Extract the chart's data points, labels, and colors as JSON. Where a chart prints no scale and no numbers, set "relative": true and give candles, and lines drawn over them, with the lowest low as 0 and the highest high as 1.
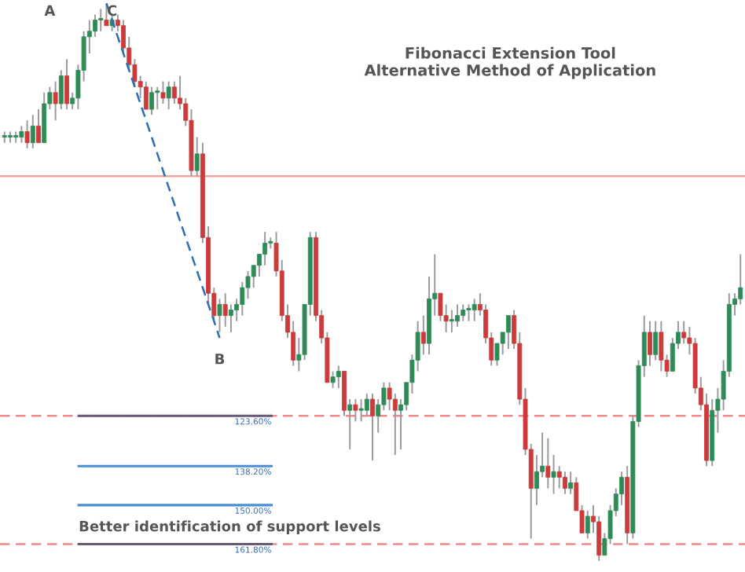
{
  "chart_data": {
    "type": "candlestick",
    "title": "Fibonacci Extension Tool",
    "subtitle": "Alternative Method of Application",
    "relative": true,
    "categories": [
      null,
      null,
      null,
      null,
      null,
      null,
      null,
      null,
      null,
      null,
      null,
      null,
      null,
      null,
      null,
      null,
      null,
      null,
      null,
      null,
      null,
      null,
      null,
      null,
      null,
      null,
      null,
      null,
      null,
      null,
      null,
      null,
      null,
      null,
      null,
      null,
      null,
      null,
      null,
      null,
      null,
      null,
      null,
      null,
      null,
      null,
      null,
      null,
      null,
      null,
      null,
      null,
      null,
      null,
      null,
      null,
      null,
      null,
      null,
      null,
      null,
      null,
      null,
      null,
      null,
      null,
      null,
      null,
      null,
      null,
      null,
      null,
      null,
      null,
      null,
      null,
      null,
      null,
      null,
      null,
      null,
      null,
      null,
      null,
      null,
      null,
      null,
      null,
      null,
      null,
      null,
      null,
      null,
      null,
      null,
      null,
      null,
      null,
      null,
      null,
      null,
      null,
      null,
      null,
      null,
      null,
      null,
      null,
      null,
      null,
      null,
      null,
      null,
      null,
      null,
      null,
      null,
      null,
      null,
      null,
      null,
      null,
      null,
      null,
      null,
      null,
      null,
      null,
      null,
      null,
      null
    ],
    "ohlc": [
      [
        0.76,
        0.77,
        0.75,
        0.76
      ],
      [
        0.76,
        0.77,
        0.75,
        0.76
      ],
      [
        0.76,
        0.77,
        0.75,
        0.76
      ],
      [
        0.76,
        0.78,
        0.75,
        0.77
      ],
      [
        0.77,
        0.79,
        0.74,
        0.75
      ],
      [
        0.75,
        0.8,
        0.74,
        0.78
      ],
      [
        0.78,
        0.81,
        0.75,
        0.75
      ],
      [
        0.75,
        0.84,
        0.75,
        0.82
      ],
      [
        0.82,
        0.85,
        0.81,
        0.84
      ],
      [
        0.84,
        0.86,
        0.79,
        0.82
      ],
      [
        0.82,
        0.88,
        0.81,
        0.87
      ],
      [
        0.87,
        0.9,
        0.81,
        0.82
      ],
      [
        0.82,
        0.84,
        0.81,
        0.83
      ],
      [
        0.83,
        0.89,
        0.81,
        0.88
      ],
      [
        0.88,
        0.95,
        0.86,
        0.94
      ],
      [
        0.94,
        0.97,
        0.91,
        0.95
      ],
      [
        0.95,
        0.98,
        0.94,
        0.97
      ],
      [
        0.97,
        0.99,
        0.95,
        0.97
      ],
      [
        0.97,
        1.0,
        0.96,
        0.96
      ],
      [
        0.96,
        0.98,
        0.95,
        0.97
      ],
      [
        0.97,
        0.98,
        0.95,
        0.96
      ],
      [
        0.96,
        0.97,
        0.91,
        0.92
      ],
      [
        0.92,
        0.94,
        0.88,
        0.89
      ],
      [
        0.89,
        0.9,
        0.85,
        0.86
      ],
      [
        0.86,
        0.87,
        0.83,
        0.85
      ],
      [
        0.85,
        0.86,
        0.81,
        0.81
      ],
      [
        0.81,
        0.85,
        0.8,
        0.84
      ],
      [
        0.84,
        0.85,
        0.81,
        0.84
      ],
      [
        0.84,
        0.86,
        0.82,
        0.83
      ],
      [
        0.83,
        0.86,
        0.81,
        0.85
      ],
      [
        0.85,
        0.86,
        0.82,
        0.83
      ],
      [
        0.83,
        0.87,
        0.81,
        0.82
      ],
      [
        0.82,
        0.83,
        0.78,
        0.79
      ],
      [
        0.79,
        0.81,
        0.69,
        0.7
      ],
      [
        0.7,
        0.76,
        0.69,
        0.73
      ],
      [
        0.73,
        0.75,
        0.57,
        0.58
      ],
      [
        0.58,
        0.6,
        0.46,
        0.48
      ],
      [
        0.48,
        0.49,
        0.43,
        0.44
      ],
      [
        0.44,
        0.47,
        0.41,
        0.46
      ],
      [
        0.46,
        0.48,
        0.42,
        0.44
      ],
      [
        0.44,
        0.46,
        0.41,
        0.45
      ],
      [
        0.45,
        0.47,
        0.43,
        0.46
      ],
      [
        0.46,
        0.5,
        0.44,
        0.49
      ],
      [
        0.49,
        0.52,
        0.47,
        0.51
      ],
      [
        0.51,
        0.53,
        0.49,
        0.53
      ],
      [
        0.53,
        0.55,
        0.51,
        0.55
      ],
      [
        0.55,
        0.59,
        0.53,
        0.57
      ],
      [
        0.57,
        0.58,
        0.56,
        0.57
      ],
      [
        0.57,
        0.59,
        0.51,
        0.52
      ],
      [
        0.52,
        0.54,
        0.43,
        0.44
      ],
      [
        0.44,
        0.46,
        0.4,
        0.41
      ],
      [
        0.41,
        0.43,
        0.35,
        0.36
      ],
      [
        0.36,
        0.4,
        0.34,
        0.37
      ],
      [
        0.37,
        0.46,
        0.36,
        0.46
      ],
      [
        0.46,
        0.59,
        0.44,
        0.58
      ],
      [
        0.58,
        0.59,
        0.43,
        0.44
      ],
      [
        0.44,
        0.45,
        0.39,
        0.4
      ],
      [
        0.4,
        0.41,
        0.32,
        0.32
      ],
      [
        0.32,
        0.34,
        0.31,
        0.33
      ],
      [
        0.33,
        0.35,
        0.31,
        0.34
      ],
      [
        0.34,
        0.34,
        0.26,
        0.27
      ],
      [
        0.27,
        0.29,
        0.2,
        0.28
      ],
      [
        0.28,
        0.29,
        0.25,
        0.27
      ],
      [
        0.27,
        0.29,
        0.25,
        0.27
      ],
      [
        0.27,
        0.3,
        0.26,
        0.29
      ],
      [
        0.29,
        0.3,
        0.18,
        0.26
      ],
      [
        0.26,
        0.29,
        0.23,
        0.28
      ],
      [
        0.28,
        0.32,
        0.27,
        0.31
      ],
      [
        0.31,
        0.32,
        0.27,
        0.29
      ],
      [
        0.29,
        0.3,
        0.19,
        0.27
      ],
      [
        0.27,
        0.29,
        0.2,
        0.28
      ],
      [
        0.28,
        0.32,
        0.27,
        0.32
      ],
      [
        0.32,
        0.37,
        0.3,
        0.36
      ],
      [
        0.36,
        0.43,
        0.34,
        0.41
      ],
      [
        0.41,
        0.44,
        0.37,
        0.39
      ],
      [
        0.39,
        0.51,
        0.37,
        0.47
      ],
      [
        0.47,
        0.55,
        0.44,
        0.48
      ],
      [
        0.48,
        0.48,
        0.43,
        0.44
      ],
      [
        0.44,
        0.46,
        0.41,
        0.43
      ],
      [
        0.43,
        0.45,
        0.41,
        0.43
      ],
      [
        0.43,
        0.46,
        0.42,
        0.44
      ],
      [
        0.44,
        0.46,
        0.43,
        0.45
      ],
      [
        0.45,
        0.46,
        0.43,
        0.45
      ],
      [
        0.45,
        0.47,
        0.43,
        0.46
      ],
      [
        0.46,
        0.48,
        0.44,
        0.45
      ],
      [
        0.45,
        0.46,
        0.39,
        0.4
      ],
      [
        0.4,
        0.41,
        0.35,
        0.36
      ],
      [
        0.36,
        0.39,
        0.35,
        0.39
      ],
      [
        0.39,
        0.41,
        0.37,
        0.41
      ],
      [
        0.41,
        0.44,
        0.38,
        0.44
      ],
      [
        0.44,
        0.45,
        0.38,
        0.39
      ],
      [
        0.39,
        0.41,
        0.28,
        0.29
      ],
      [
        0.29,
        0.31,
        0.19,
        0.2
      ],
      [
        0.2,
        0.21,
        0.04,
        0.13
      ],
      [
        0.13,
        0.19,
        0.1,
        0.16
      ],
      [
        0.16,
        0.23,
        0.15,
        0.17
      ],
      [
        0.17,
        0.22,
        0.13,
        0.15
      ],
      [
        0.15,
        0.19,
        0.12,
        0.16
      ],
      [
        0.16,
        0.17,
        0.13,
        0.15
      ],
      [
        0.15,
        0.16,
        0.12,
        0.13
      ],
      [
        0.13,
        0.16,
        0.12,
        0.14
      ],
      [
        0.14,
        0.15,
        0.09,
        0.09
      ],
      [
        0.09,
        0.1,
        0.05,
        0.05
      ],
      [
        0.05,
        0.09,
        0.04,
        0.08
      ],
      [
        0.08,
        0.1,
        0.05,
        0.07
      ],
      [
        0.07,
        0.08,
        0.0,
        0.01
      ],
      [
        0.01,
        0.05,
        0.01,
        0.04
      ],
      [
        0.04,
        0.1,
        0.03,
        0.09
      ],
      [
        0.09,
        0.13,
        0.08,
        0.12
      ],
      [
        0.12,
        0.16,
        0.1,
        0.15
      ],
      [
        0.15,
        0.17,
        0.03,
        0.05
      ],
      [
        0.05,
        0.26,
        0.04,
        0.25
      ],
      [
        0.25,
        0.36,
        0.24,
        0.35
      ],
      [
        0.35,
        0.44,
        0.33,
        0.41
      ],
      [
        0.41,
        0.43,
        0.35,
        0.37
      ],
      [
        0.37,
        0.43,
        0.36,
        0.41
      ],
      [
        0.41,
        0.43,
        0.34,
        0.36
      ],
      [
        0.36,
        0.37,
        0.33,
        0.34
      ],
      [
        0.34,
        0.4,
        0.34,
        0.39
      ],
      [
        0.39,
        0.43,
        0.38,
        0.41
      ],
      [
        0.41,
        0.43,
        0.39,
        0.4
      ],
      [
        0.4,
        0.42,
        0.37,
        0.39
      ],
      [
        0.39,
        0.4,
        0.3,
        0.31
      ],
      [
        0.31,
        0.33,
        0.27,
        0.28
      ],
      [
        0.28,
        0.3,
        0.17,
        0.18
      ],
      [
        0.18,
        0.29,
        0.17,
        0.27
      ],
      [
        0.27,
        0.31,
        0.23,
        0.29
      ],
      [
        0.29,
        0.36,
        0.27,
        0.34
      ],
      [
        0.34,
        0.48,
        0.33,
        0.46
      ],
      [
        0.46,
        0.48,
        0.44,
        0.47
      ],
      [
        0.47,
        0.55,
        0.46,
        0.49
      ]
    ],
    "series": [
      {
        "type": "line",
        "color": "#2a6fb5",
        "line_style": "dashed",
        "values": [
          null,
          null,
          null,
          null,
          null,
          null,
          null,
          null,
          null,
          null,
          null,
          null,
          null,
          null,
          null,
          null,
          null,
          null,
          1.0,
          null,
          null,
          null,
          null,
          null,
          null,
          null,
          null,
          null,
          null,
          null,
          null,
          null,
          null,
          null,
          null,
          null,
          null,
          null,
          0.4,
          null,
          null,
          null,
          null,
          null,
          null,
          null,
          null,
          null,
          null,
          null,
          null,
          null,
          null,
          null,
          null,
          null,
          null,
          null,
          null,
          null,
          null,
          null,
          null,
          null,
          null,
          null,
          null,
          null,
          null,
          null,
          null,
          null,
          null,
          null,
          null,
          null,
          null,
          null,
          null,
          null,
          null,
          null,
          null,
          null,
          null,
          null,
          null,
          null,
          null,
          null,
          null,
          null,
          null,
          null,
          null,
          null,
          null,
          null,
          null,
          null,
          null,
          null,
          null,
          null,
          null,
          null,
          null,
          null,
          null,
          null,
          null,
          null,
          null,
          null,
          null,
          null,
          null,
          null,
          null,
          null,
          null,
          null,
          null,
          null,
          null,
          null,
          null,
          null,
          null,
          null,
          null
        ]
      }
    ],
    "ref_lines": [
      {
        "axis": "y",
        "value": 0.69,
        "color": "#f4a49c",
        "line_style": "solid"
      },
      {
        "axis": "y",
        "value": 0.26,
        "color": "#f08a8a",
        "line_style": "dashed"
      },
      {
        "axis": "y",
        "value": 0.03,
        "color": "#f08a8a",
        "line_style": "dashed"
      },
      {
        "axis": "y",
        "value": 0.26,
        "color": "#6a5a7a",
        "line_style": "solid"
      },
      {
        "axis": "y",
        "value": 0.17,
        "color": "#4a8fd4",
        "line_style": "solid"
      },
      {
        "axis": "y",
        "value": 0.1,
        "color": "#4a8fd4",
        "line_style": "solid"
      },
      {
        "axis": "y",
        "value": 0.03,
        "color": "#6a5a7a",
        "line_style": "solid"
      }
    ],
    "annotations": [
      "A",
      "C",
      "B",
      "Better identification of support levels",
      {
        "text": "123.60%",
        "y": 0.26
      },
      {
        "text": "138.20%",
        "y": 0.17
      },
      {
        "text": "150.00%",
        "y": 0.1
      },
      {
        "text": "161.80%",
        "y": 0.03
      }
    ]
  }
}
